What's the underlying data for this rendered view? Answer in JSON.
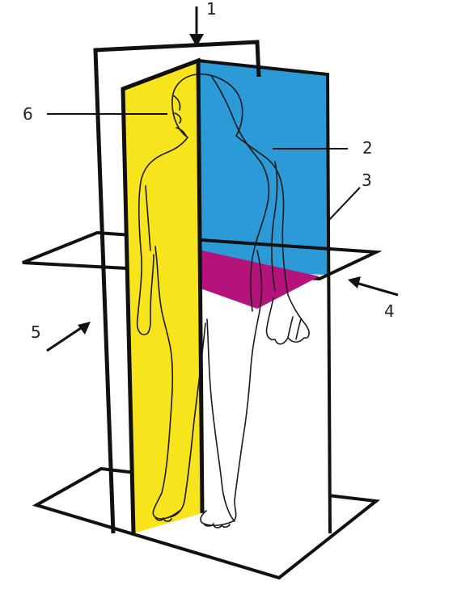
{
  "diagram": {
    "labels": [
      {
        "id": "1",
        "text": "1"
      },
      {
        "id": "2",
        "text": "2"
      },
      {
        "id": "3",
        "text": "3"
      },
      {
        "id": "4",
        "text": "4"
      },
      {
        "id": "5",
        "text": "5"
      },
      {
        "id": "6",
        "text": "6"
      }
    ]
  },
  "colors": {
    "sagittal_plane": "#f7e41c",
    "frontal_plane": "#2d9ad8",
    "transverse_plane": "#b5127c",
    "outline": "#111111",
    "background": "#ffffff"
  }
}
